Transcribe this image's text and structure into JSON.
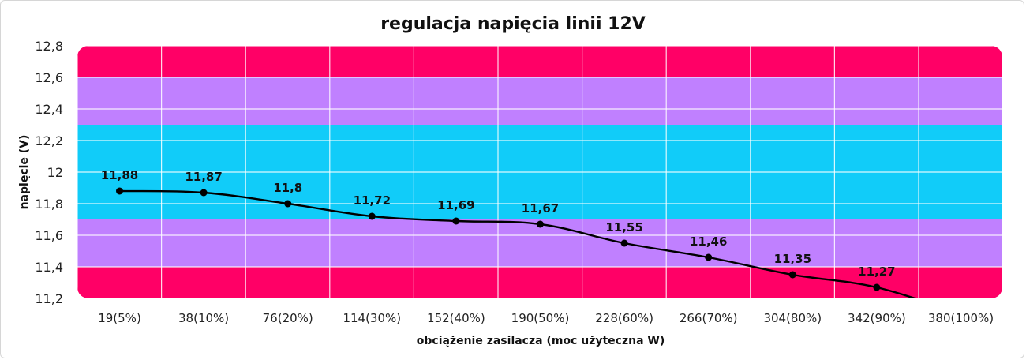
{
  "chart_data": {
    "type": "line",
    "title": "regulacja napięcia linii 12V",
    "xlabel": "obciążenie zasilacza (moc użyteczna W)",
    "ylabel": "napięcie (V)",
    "categories": [
      "19(5%)",
      "38(10%)",
      "76(20%)",
      "114(30%)",
      "152(40%)",
      "190(50%)",
      "228(60%)",
      "266(70%)",
      "304(80%)",
      "342(90%)",
      "380(100%)"
    ],
    "yticks": [
      "11,2",
      "11,4",
      "11,6",
      "11,8",
      "12",
      "12,2",
      "12,4",
      "12,6",
      "12,8"
    ],
    "ylim": [
      11.2,
      12.8
    ],
    "series": [
      {
        "values": [
          11.88,
          11.87,
          11.8,
          11.72,
          11.69,
          11.67,
          11.55,
          11.46,
          11.35,
          11.27,
          11.1
        ],
        "data_labels": [
          "11,88",
          "11,87",
          "11,8",
          "11,72",
          "11,69",
          "11,67",
          "11,55",
          "11,46",
          "11,35",
          "11,27",
          ""
        ],
        "color": "#000000"
      }
    ],
    "bands": [
      {
        "from": 11.2,
        "to": 11.4,
        "color": "#ff0066"
      },
      {
        "from": 11.4,
        "to": 11.7,
        "color": "#c080ff"
      },
      {
        "from": 11.7,
        "to": 12.3,
        "color": "#11ccf9"
      },
      {
        "from": 12.3,
        "to": 12.6,
        "color": "#c080ff"
      },
      {
        "from": 12.6,
        "to": 12.8,
        "color": "#ff0066"
      }
    ],
    "grid": true
  }
}
